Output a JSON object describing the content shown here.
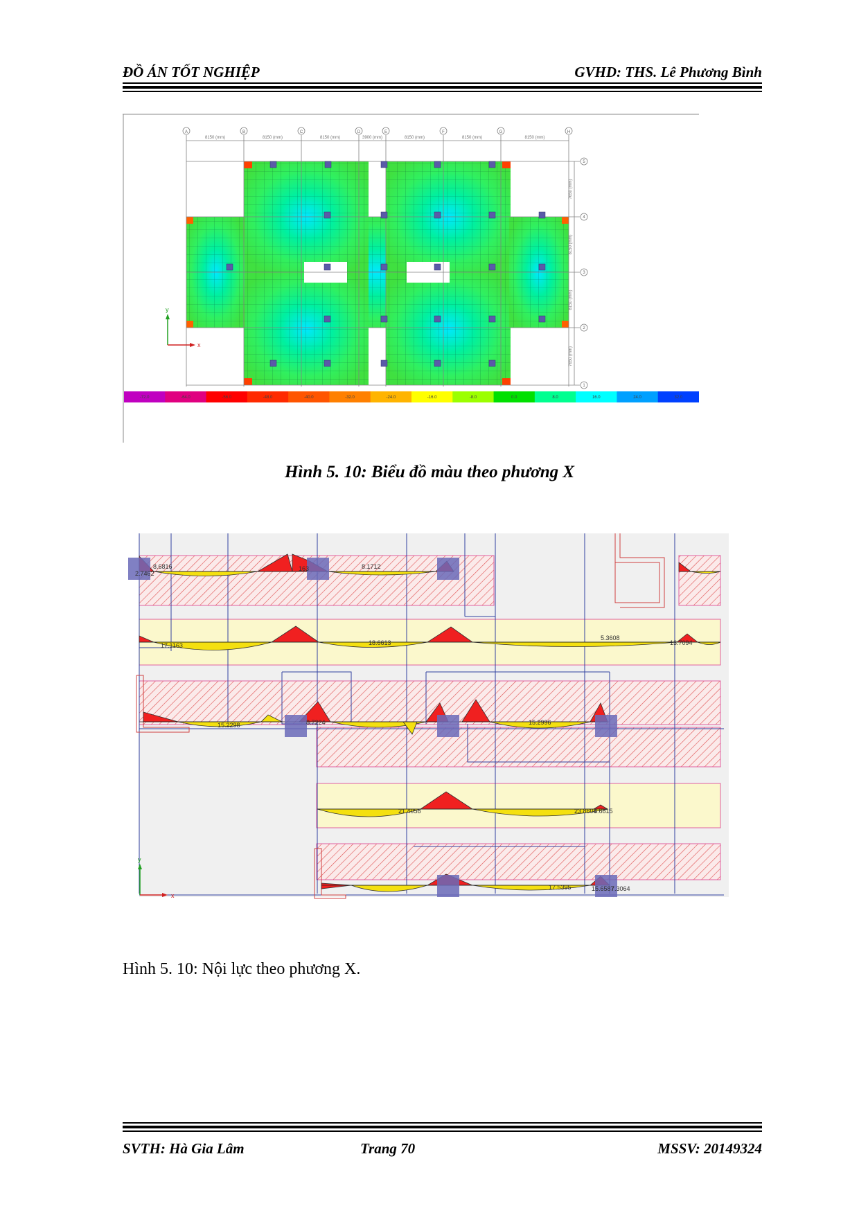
{
  "header": {
    "left": "ĐỒ ÁN TỐT NGHIỆP",
    "right": "GVHD: THS. Lê Phương Bình"
  },
  "figure1": {
    "caption": "Hình 5. 10: Biểu đồ màu theo phương X",
    "grid_columns": [
      "A",
      "B",
      "C",
      "D",
      "E",
      "F",
      "G",
      "H"
    ],
    "grid_rows": [
      "5",
      "4",
      "3",
      "2",
      "1"
    ],
    "spans_x": [
      "8150 (mm)",
      "8150 (mm)",
      "8150 (mm)",
      "3900 (mm)",
      "8150 (mm)",
      "8150 (mm)",
      "8150 (mm)"
    ],
    "spans_y": [
      "7650 (mm)",
      "8150 (mm)",
      "8150 (mm)",
      "7650 (mm)"
    ],
    "axis_x": "x",
    "axis_y": "y",
    "legend_values": [
      "-72.0",
      "-64.0",
      "-56.0",
      "-48.0",
      "-40.0",
      "-32.0",
      "-24.0",
      "-16.0",
      "-8.0",
      "0.0",
      "8.0",
      "16.0",
      "24.0",
      "32.0"
    ],
    "legend_colors": [
      "#c000c0",
      "#e00080",
      "#ff0000",
      "#ff2a00",
      "#ff5500",
      "#ff8000",
      "#ffb400",
      "#ffff00",
      "#9cff00",
      "#00e000",
      "#00ff90",
      "#00ffff",
      "#00a0ff",
      "#0040ff"
    ]
  },
  "figure2": {
    "caption": "Hình 5. 10: Nội lực theo phương X.",
    "axis_x": "x",
    "axis_y": "y",
    "labels": {
      "r1_a": "8.6816",
      "r1_b": "2.7462",
      "r1_c": "8.1712",
      "r1_d": "163",
      "r2_a": "17.1163",
      "r2_b": "18.6613",
      "r2_c": "5.3608",
      "r2_d": "13.7094",
      "r3_a": "15.2298",
      "r3_b": "8.7224",
      "r3_c": "15.2996",
      "r4_a": "21.4958",
      "r4_b": "23.8604",
      "r4_c": "8.6815",
      "r5_a": "17.5395",
      "r5_b": "15.6587",
      "r5_c": "7.3064"
    }
  },
  "footer": {
    "left": "SVTH: Hà Gia Lâm",
    "center": "Trang 70",
    "right": "MSSV: 20149324"
  }
}
